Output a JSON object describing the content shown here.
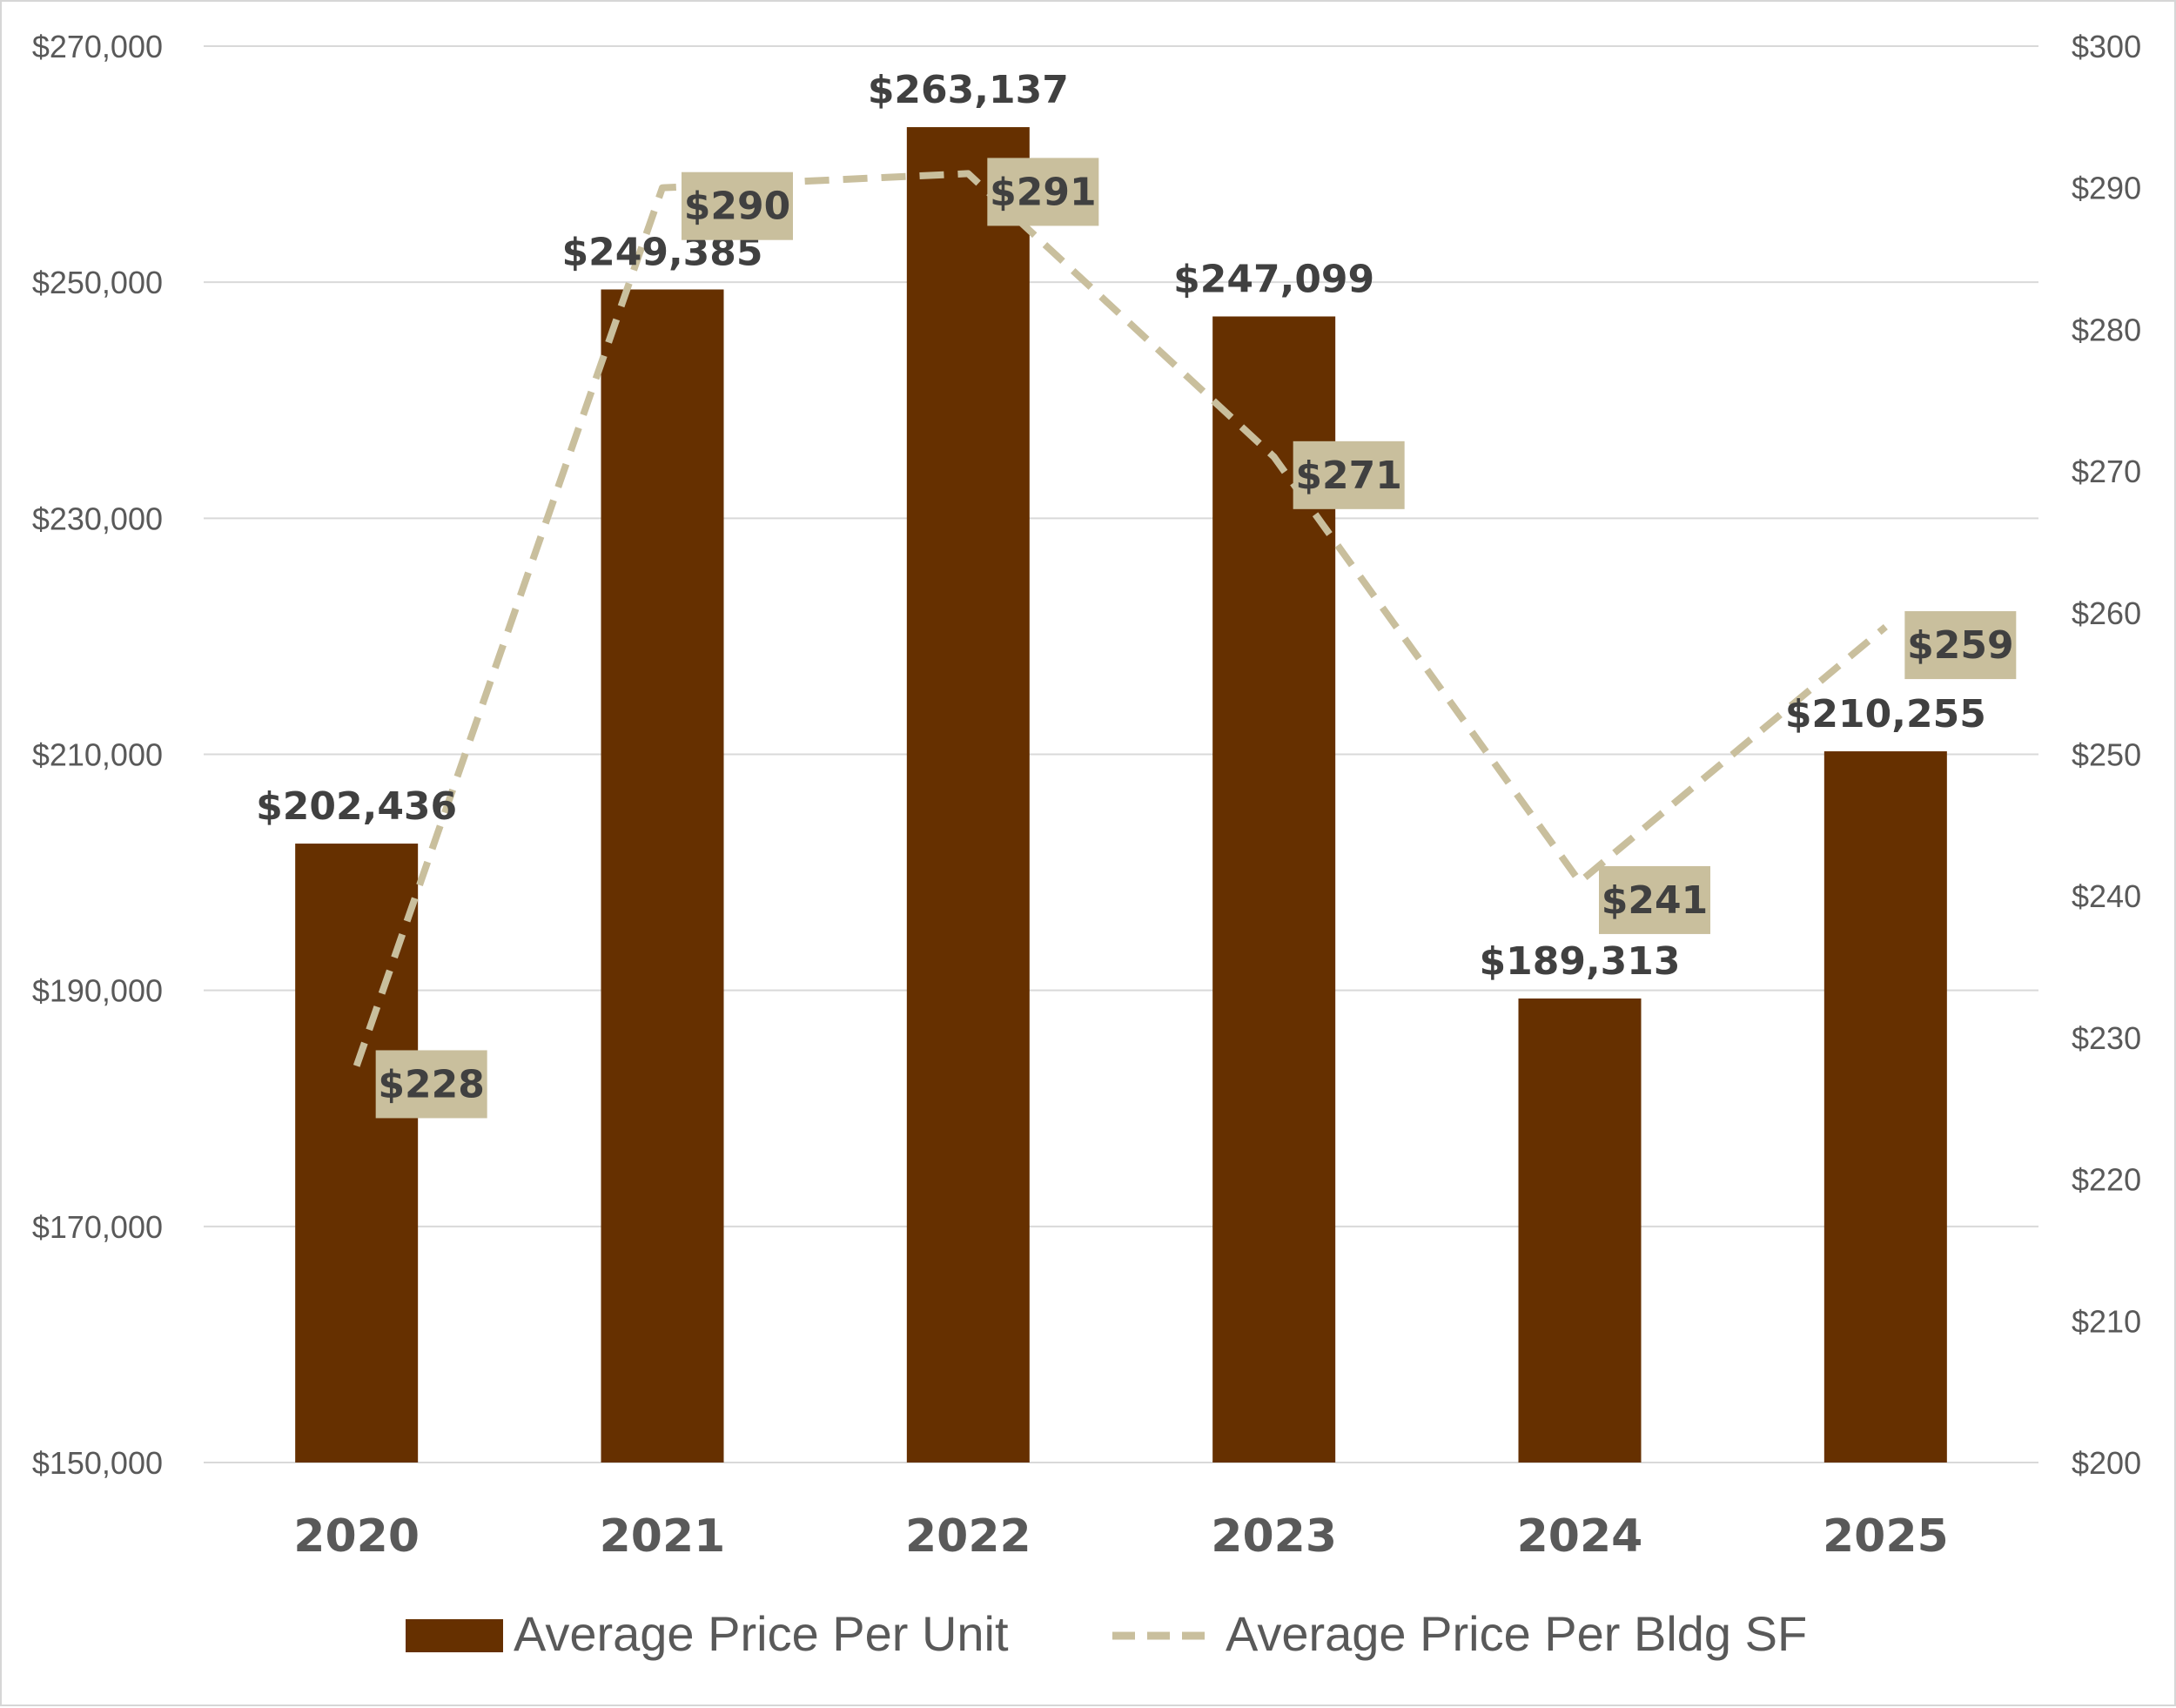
{
  "chart_data": {
    "type": "bar",
    "categories": [
      "2020",
      "2021",
      "2022",
      "2023",
      "2024",
      "2025"
    ],
    "series": [
      {
        "name": "Average Price Per Unit",
        "type": "bar",
        "axis": "left",
        "values": [
          202436,
          249385,
          263137,
          247099,
          189313,
          210255
        ],
        "labels": [
          "$202,436",
          "$249,385",
          "$263,137",
          "$247,099",
          "$189,313",
          "$210,255"
        ],
        "color": "#663000"
      },
      {
        "name": "Average Price Per Bldg SF",
        "type": "line",
        "style": "dashed",
        "axis": "right",
        "values": [
          228,
          290,
          291,
          271,
          241,
          259
        ],
        "labels": [
          "$228",
          "$290",
          "$291",
          "$271",
          "$241",
          "$259"
        ],
        "color": "#c9bf9d"
      }
    ],
    "left_axis": {
      "ylim": [
        150000,
        270000
      ],
      "ticks": [
        150000,
        170000,
        190000,
        210000,
        230000,
        250000,
        270000
      ],
      "tick_labels": [
        "$150,000",
        "$170,000",
        "$190,000",
        "$210,000",
        "$230,000",
        "$250,000",
        "$270,000"
      ]
    },
    "right_axis": {
      "ylim": [
        200,
        300
      ],
      "ticks": [
        200,
        210,
        220,
        230,
        240,
        250,
        260,
        270,
        280,
        290,
        300
      ],
      "tick_labels": [
        "$200",
        "$210",
        "$220",
        "$230",
        "$240",
        "$250",
        "$260",
        "$270",
        "$280",
        "$290",
        "$300"
      ]
    },
    "grid": true,
    "legend": {
      "position": "bottom",
      "entries": [
        "Average Price Per Unit",
        "Average Price Per Bldg SF"
      ]
    },
    "colors": {
      "bar": "#663000",
      "line": "#c9bf9d",
      "label_box": "#c9bf9d",
      "gridline": "#d9d9d9",
      "axis_text": "#595959",
      "data_label_text": "#404040"
    }
  }
}
